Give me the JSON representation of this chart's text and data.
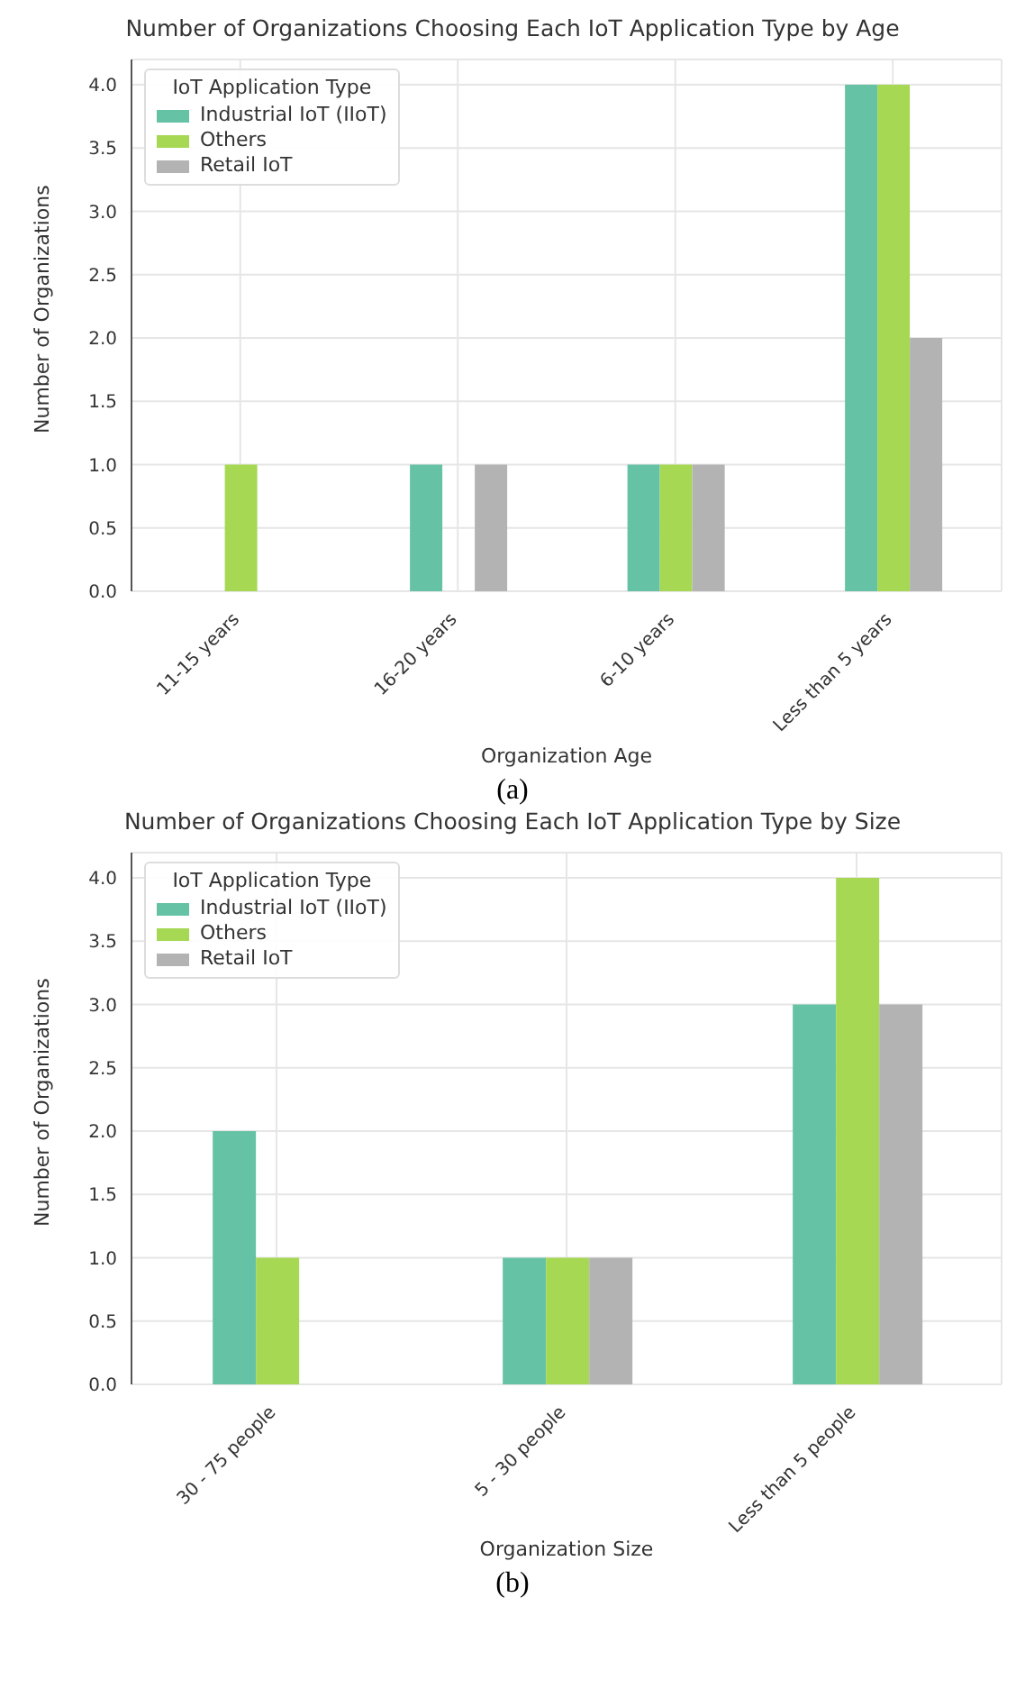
{
  "chart_data": [
    {
      "type": "bar",
      "title": "Number of Organizations Choosing Each IoT Application Type by Age",
      "xlabel": "Organization Age",
      "ylabel": "Number of Organizations",
      "legend_title": "IoT Application Type",
      "categories": [
        "11-15 years",
        "16-20 years",
        "6-10 years",
        "Less than 5 years"
      ],
      "series": [
        {
          "name": "Industrial IoT (IIoT)",
          "color": "#66c2a5",
          "values": [
            0,
            1,
            1,
            4
          ]
        },
        {
          "name": "Others",
          "color": "#a6d854",
          "values": [
            1,
            0,
            1,
            4
          ]
        },
        {
          "name": "Retail IoT",
          "color": "#b3b3b3",
          "values": [
            0,
            1,
            1,
            2
          ]
        }
      ],
      "ylim": [
        0,
        4.2
      ],
      "yticks": [
        {
          "value": 0,
          "label": "0.0"
        },
        {
          "value": 0.5,
          "label": "0.5"
        },
        {
          "value": 1,
          "label": "1.0"
        },
        {
          "value": 1.5,
          "label": "1.5"
        },
        {
          "value": 2,
          "label": "2.0"
        },
        {
          "value": 2.5,
          "label": "2.5"
        },
        {
          "value": 3,
          "label": "3.0"
        },
        {
          "value": 3.5,
          "label": "3.5"
        },
        {
          "value": 4,
          "label": "4.0"
        }
      ],
      "grid": true,
      "legend": "top left",
      "annotations": [
        "(a)"
      ]
    },
    {
      "type": "bar",
      "title": "Number of Organizations Choosing Each IoT Application Type by Size",
      "xlabel": "Organization Size",
      "ylabel": "Number of Organizations",
      "legend_title": "IoT Application Type",
      "categories": [
        "30 - 75 people",
        "5 - 30 people",
        "Less than 5 people"
      ],
      "series": [
        {
          "name": "Industrial IoT (IIoT)",
          "color": "#66c2a5",
          "values": [
            2,
            1,
            3
          ]
        },
        {
          "name": "Others",
          "color": "#a6d854",
          "values": [
            1,
            1,
            4
          ]
        },
        {
          "name": "Retail IoT",
          "color": "#b3b3b3",
          "values": [
            0,
            1,
            3
          ]
        }
      ],
      "ylim": [
        0,
        4.2
      ],
      "yticks": [
        {
          "value": 0,
          "label": "0.0"
        },
        {
          "value": 0.5,
          "label": "0.5"
        },
        {
          "value": 1,
          "label": "1.0"
        },
        {
          "value": 1.5,
          "label": "1.5"
        },
        {
          "value": 2,
          "label": "2.0"
        },
        {
          "value": 2.5,
          "label": "2.5"
        },
        {
          "value": 3,
          "label": "3.0"
        },
        {
          "value": 3.5,
          "label": "3.5"
        },
        {
          "value": 4,
          "label": "4.0"
        }
      ],
      "grid": true,
      "legend": "top left",
      "annotations": [
        "(b)"
      ]
    }
  ]
}
